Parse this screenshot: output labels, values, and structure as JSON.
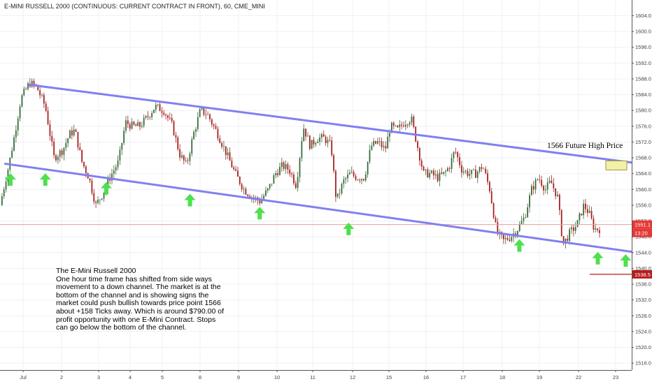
{
  "colors": {
    "channel": "#8080f0",
    "up_candle": "#3a6a3a",
    "down_candle": "#a82020",
    "arrow": "#4ee04e",
    "price_line": "#e8a0a0",
    "badge_red": "#e53935",
    "badge_dark_red": "#b71c1c",
    "target_box_fill": "#f5f0a8",
    "target_box_border": "#9a9a40"
  },
  "chart_data": {
    "type": "candlestick",
    "title": "E-MINI RUSSELL 2000 (CONTINUOUS: CURRENT CONTRACT IN FRONT), 60, CME_MINI",
    "timeframe": "60",
    "exchange": "CME_MINI",
    "grid": true,
    "legend": "none",
    "ylim": [
      1514.0,
      1606.5
    ],
    "y_ticks": [
      "1604.0",
      "1600.0",
      "1596.0",
      "1592.0",
      "1588.0",
      "1584.0",
      "1580.0",
      "1576.0",
      "1572.0",
      "1568.0",
      "1564.0",
      "1560.0",
      "1556.0",
      "1552.0",
      "1548.0",
      "1544.0",
      "1540.0",
      "1536.0",
      "1532.0",
      "1528.0",
      "1524.0",
      "1520.0",
      "1516.0"
    ],
    "x_ticks": [
      {
        "label": "Jul",
        "day": 1
      },
      {
        "label": "2",
        "day": 2
      },
      {
        "label": "3",
        "day": 3
      },
      {
        "label": "4",
        "day": 4
      },
      {
        "label": "5",
        "day": 5
      },
      {
        "label": "8",
        "day": 8
      },
      {
        "label": "9",
        "day": 9
      },
      {
        "label": "10",
        "day": 10
      },
      {
        "label": "11",
        "day": 11
      },
      {
        "label": "12",
        "day": 12
      },
      {
        "label": "15",
        "day": 15
      },
      {
        "label": "16",
        "day": 16
      },
      {
        "label": "17",
        "day": 17
      },
      {
        "label": "18",
        "day": 18
      },
      {
        "label": "19",
        "day": 19
      },
      {
        "label": "22",
        "day": 22
      },
      {
        "label": "23",
        "day": 23
      }
    ],
    "price_path": [
      [
        0.0,
        1556
      ],
      [
        0.25,
        1566
      ],
      [
        0.4,
        1573
      ],
      [
        0.6,
        1583
      ],
      [
        0.85,
        1587
      ],
      [
        1.05,
        1586
      ],
      [
        1.3,
        1581
      ],
      [
        1.55,
        1568
      ],
      [
        1.8,
        1570
      ],
      [
        2.0,
        1574
      ],
      [
        2.15,
        1575
      ],
      [
        2.35,
        1567
      ],
      [
        2.55,
        1563
      ],
      [
        2.75,
        1556
      ],
      [
        2.95,
        1559
      ],
      [
        3.15,
        1563
      ],
      [
        3.4,
        1567
      ],
      [
        3.6,
        1577
      ],
      [
        3.8,
        1576
      ],
      [
        4.0,
        1576
      ],
      [
        4.2,
        1578
      ],
      [
        4.45,
        1581
      ],
      [
        4.7,
        1580
      ],
      [
        4.95,
        1576
      ],
      [
        5.15,
        1569
      ],
      [
        5.35,
        1566
      ],
      [
        5.55,
        1574
      ],
      [
        5.75,
        1580
      ],
      [
        5.95,
        1579
      ],
      [
        6.25,
        1574
      ],
      [
        6.5,
        1569
      ],
      [
        6.75,
        1564
      ],
      [
        7.0,
        1560
      ],
      [
        7.25,
        1558
      ],
      [
        7.45,
        1557
      ],
      [
        7.7,
        1560
      ],
      [
        7.9,
        1564
      ],
      [
        8.1,
        1566
      ],
      [
        8.3,
        1565
      ],
      [
        8.5,
        1561
      ],
      [
        8.7,
        1576
      ],
      [
        8.9,
        1571
      ],
      [
        9.1,
        1573
      ],
      [
        9.3,
        1573
      ],
      [
        9.5,
        1571
      ],
      [
        9.65,
        1557
      ],
      [
        9.85,
        1562
      ],
      [
        10.05,
        1564
      ],
      [
        10.25,
        1563
      ],
      [
        10.45,
        1563
      ],
      [
        10.65,
        1571
      ],
      [
        10.85,
        1572
      ],
      [
        11.05,
        1570
      ],
      [
        11.2,
        1576
      ],
      [
        11.4,
        1575
      ],
      [
        11.6,
        1577
      ],
      [
        11.8,
        1578
      ],
      [
        11.95,
        1572
      ],
      [
        12.15,
        1564
      ],
      [
        12.35,
        1564
      ],
      [
        12.55,
        1563
      ],
      [
        12.75,
        1564
      ],
      [
        12.9,
        1566
      ],
      [
        13.05,
        1570
      ],
      [
        13.25,
        1565
      ],
      [
        13.45,
        1564
      ],
      [
        13.65,
        1564
      ],
      [
        13.85,
        1566
      ],
      [
        14.05,
        1560
      ],
      [
        14.25,
        1549
      ],
      [
        14.45,
        1547
      ],
      [
        14.65,
        1548
      ],
      [
        14.85,
        1550
      ],
      [
        15.05,
        1553
      ],
      [
        15.25,
        1560
      ],
      [
        15.45,
        1563
      ],
      [
        15.65,
        1560
      ],
      [
        15.8,
        1562
      ],
      [
        16.0,
        1558
      ],
      [
        16.15,
        1546
      ],
      [
        16.35,
        1549
      ],
      [
        16.55,
        1551
      ],
      [
        16.75,
        1556
      ],
      [
        16.9,
        1554
      ],
      [
        17.05,
        1550
      ],
      [
        17.2,
        1550
      ]
    ],
    "channel": {
      "upper": {
        "start": {
          "day": 0.85,
          "price": 1586.5
        },
        "end": {
          "day": 19.1,
          "price": 1565.7
        }
      },
      "lower": {
        "start": {
          "day": 0.15,
          "price": 1566.5
        },
        "end": {
          "day": 19.1,
          "price": 1543.0
        }
      }
    },
    "support_arrows": [
      {
        "day": 0.3,
        "price": 1562.5
      },
      {
        "day": 1.3,
        "price": 1562.5
      },
      {
        "day": 3.05,
        "price": 1560.3
      },
      {
        "day": 5.45,
        "price": 1557.3
      },
      {
        "day": 7.45,
        "price": 1554.0
      },
      {
        "day": 10.0,
        "price": 1550.0
      },
      {
        "day": 14.9,
        "price": 1545.8
      },
      {
        "day": 17.15,
        "price": 1542.6
      },
      {
        "day": 17.95,
        "price": 1542.0
      }
    ],
    "current_price": {
      "label": "1551.1",
      "value": 1551.1,
      "countdown": "13:20"
    },
    "stop_level": {
      "label": "1538.5",
      "value": 1538.5
    },
    "target": {
      "label": "1566 Future High Price",
      "price": 1566
    }
  },
  "annotation": {
    "lines": [
      "The E-Mini Russell 2000",
      "One hour time frame has shifted from side ways movement to a down channel. The market is at the bottom of the channel and is showing signs the market could push bullish towards price point 1566 about +158 Ticks away. Which is around $790.00 of profit opportunity with one E-Mini Contract.  Stops can go below the bottom of the channel."
    ]
  }
}
